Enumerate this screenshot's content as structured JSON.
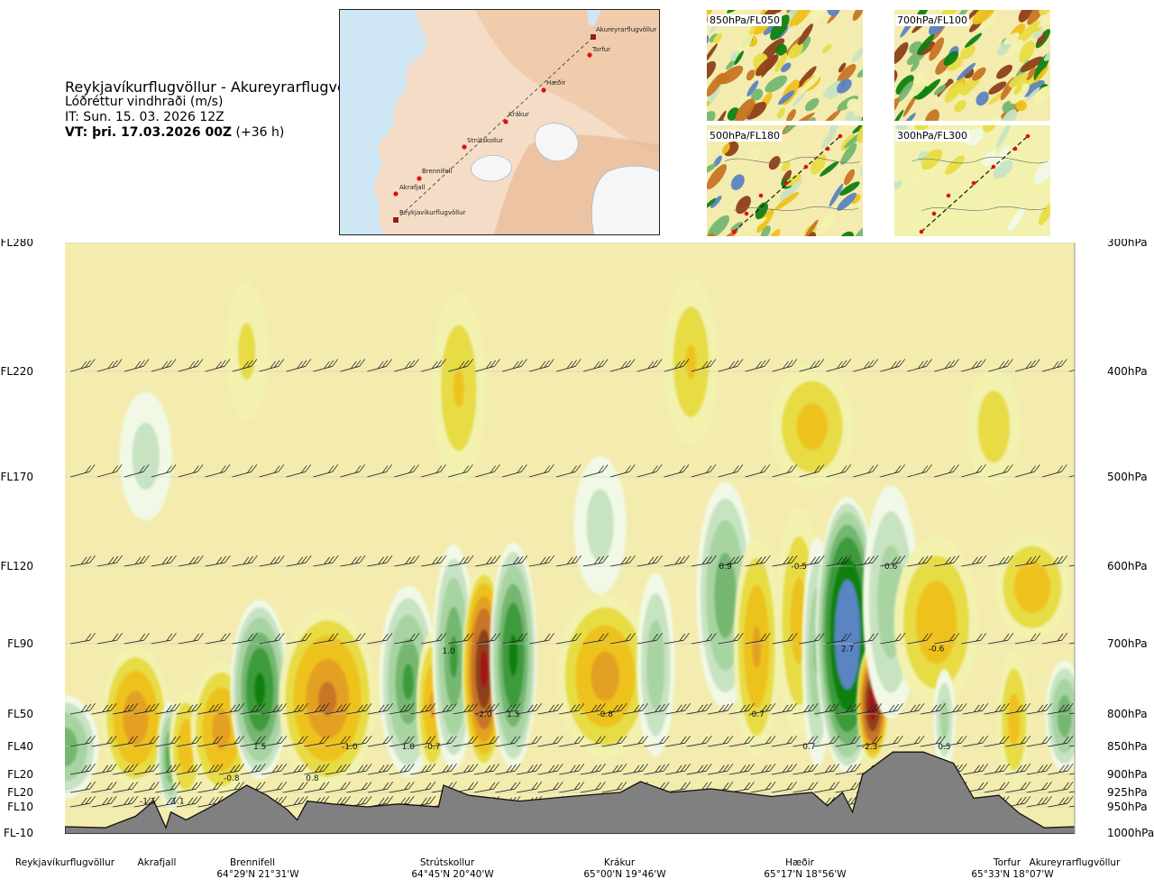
{
  "title": {
    "route": "Reykjavíkurflugvöllur - Akureyrarflugvöllur",
    "parameter": "Lóðréttur vindhraði (m/s)",
    "it": "IT: Sun. 15. 03. 2026 12Z",
    "vt_bold": "VT: þri. 17.03.2026 00Z",
    "vt_offset": "(+36 h)"
  },
  "route_map": {
    "points": [
      {
        "name": "Akureyrarflugvöllur",
        "kind": "airport"
      },
      {
        "name": "Torfur",
        "kind": "waypoint"
      },
      {
        "name": "Hæðir",
        "kind": "waypoint"
      },
      {
        "name": "Krákur",
        "kind": "waypoint"
      },
      {
        "name": "Strútskollur",
        "kind": "waypoint"
      },
      {
        "name": "Brennifell",
        "kind": "waypoint"
      },
      {
        "name": "Akrafjall",
        "kind": "waypoint"
      },
      {
        "name": "Reykjavíkurflugvöllur",
        "kind": "airport"
      }
    ]
  },
  "mini_maps": [
    {
      "label": "850hPa/FL050",
      "style": "dense"
    },
    {
      "label": "700hPa/FL100",
      "style": "dense"
    },
    {
      "label": "500hPa/FL180",
      "style": "medium"
    },
    {
      "label": "300hPa/FL300",
      "style": "sparse"
    }
  ],
  "colors": {
    "terrain": "#808080",
    "background": "#f3ecae",
    "neg_1": "#f2f2ae",
    "neg_2": "#e8dc44",
    "neg_3": "#eec21a",
    "neg_4": "#e3a022",
    "neg_5": "#c77525",
    "neg_6": "#8e3f1a",
    "neg_7": "#a31515",
    "neg_8": "#d80c0c",
    "pos_1": "#f1f9e6",
    "pos_2": "#c8e3c2",
    "pos_3": "#a8d4a2",
    "pos_4": "#75b771",
    "pos_5": "#3e9b3a",
    "pos_6": "#108010",
    "pos_7": "#5a84c2",
    "pos_8": "#6a5cda"
  },
  "chart_data": {
    "type": "heatmap",
    "title": "Lóðréttur vindhraði (m/s)",
    "x_axis": "distance along route",
    "x_range": [
      0,
      1
    ],
    "y_axis_left": {
      "labels": [
        "FL280",
        "FL220",
        "FL170",
        "FL120",
        "FL90",
        "FL50",
        "FL40",
        "FL20",
        "FL20",
        "FL10",
        "FL-10"
      ],
      "pressure_hpa": [
        300,
        400,
        500,
        600,
        700,
        800,
        850,
        900,
        925,
        950,
        1000
      ]
    },
    "y_axis_right": {
      "labels": [
        "300hPa",
        "400hPa",
        "500hPa",
        "600hPa",
        "700hPa",
        "800hPa",
        "850hPa",
        "900hPa",
        "925hPa",
        "950hPa",
        "1000hPa"
      ],
      "pressure_hpa": [
        300,
        400,
        500,
        600,
        700,
        800,
        850,
        900,
        925,
        950,
        1000
      ]
    },
    "waypoints": [
      {
        "name": "Reykjavíkurflugvöllur",
        "x": 0.0,
        "coords": ""
      },
      {
        "name": "Akrafjall",
        "x": 0.09,
        "coords": ""
      },
      {
        "name": "Brennifell",
        "x": 0.186,
        "coords": "64°29'N 21°31'W"
      },
      {
        "name": "Strútskollur",
        "x": 0.379,
        "coords": "64°45'N 20°40'W"
      },
      {
        "name": "Krákur",
        "x": 0.562,
        "coords": "65°00'N 19°46'W"
      },
      {
        "name": "Hæðir",
        "x": 0.75,
        "coords": "65°17'N 18°56'W"
      },
      {
        "name": "Torfur",
        "x": 0.941,
        "coords": "65°33'N 18°07'W"
      },
      {
        "name": "Akureyrarflugvöllur",
        "x": 1.0,
        "coords": ""
      }
    ],
    "value_labels": [
      {
        "text": "1.5",
        "x": 0.193,
        "p": 850
      },
      {
        "text": "-1.0",
        "x": 0.282,
        "p": 850
      },
      {
        "text": "1.0",
        "x": 0.34,
        "p": 850
      },
      {
        "text": "-0.7",
        "x": 0.364,
        "p": 850
      },
      {
        "text": "0.8",
        "x": 0.245,
        "p": 905
      },
      {
        "text": "-0.8",
        "x": 0.165,
        "p": 905
      },
      {
        "text": "1.1",
        "x": 0.112,
        "p": 940
      },
      {
        "text": "-1.1",
        "x": 0.082,
        "p": 940
      },
      {
        "text": "1.0",
        "x": 0.38,
        "p": 710
      },
      {
        "text": "-2.0",
        "x": 0.415,
        "p": 800
      },
      {
        "text": "1.5",
        "x": 0.444,
        "p": 800
      },
      {
        "text": "-0.8",
        "x": 0.535,
        "p": 800
      },
      {
        "text": "0.9",
        "x": 0.654,
        "p": 600
      },
      {
        "text": "-0.5",
        "x": 0.727,
        "p": 600
      },
      {
        "text": "0.6",
        "x": 0.818,
        "p": 600
      },
      {
        "text": "-0.7",
        "x": 0.685,
        "p": 800
      },
      {
        "text": "2.7",
        "x": 0.775,
        "p": 707
      },
      {
        "text": "-0.6",
        "x": 0.863,
        "p": 707
      },
      {
        "text": "0.7",
        "x": 0.737,
        "p": 850
      },
      {
        "text": "-2.3",
        "x": 0.797,
        "p": 850
      },
      {
        "text": "0.5",
        "x": 0.871,
        "p": 850
      }
    ],
    "barb_levels_hpa": [
      300,
      400,
      500,
      600,
      700,
      800,
      850,
      900,
      925,
      950
    ],
    "cells": [
      {
        "x": 0.0,
        "p0": 770,
        "p1": 940,
        "w": 0.035,
        "v": 0.9
      },
      {
        "x": 0.07,
        "p0": 700,
        "p1": 925,
        "w": 0.035,
        "v": -0.9
      },
      {
        "x": 0.105,
        "p0": 780,
        "p1": 960,
        "w": 0.014,
        "v": 1.1
      },
      {
        "x": 0.12,
        "p0": 760,
        "p1": 950,
        "w": 0.018,
        "v": -0.6
      },
      {
        "x": 0.155,
        "p0": 720,
        "p1": 940,
        "w": 0.032,
        "v": -0.8
      },
      {
        "x": 0.193,
        "p0": 640,
        "p1": 910,
        "w": 0.03,
        "v": 1.5
      },
      {
        "x": 0.26,
        "p0": 650,
        "p1": 925,
        "w": 0.05,
        "v": -1.0
      },
      {
        "x": 0.34,
        "p0": 620,
        "p1": 910,
        "w": 0.03,
        "v": 1.0
      },
      {
        "x": 0.364,
        "p0": 680,
        "p1": 910,
        "w": 0.017,
        "v": -0.7
      },
      {
        "x": 0.385,
        "p0": 570,
        "p1": 900,
        "w": 0.022,
        "v": 1.0
      },
      {
        "x": 0.415,
        "p0": 600,
        "p1": 895,
        "w": 0.022,
        "v": -2.0
      },
      {
        "x": 0.444,
        "p0": 570,
        "p1": 895,
        "w": 0.024,
        "v": 1.5
      },
      {
        "x": 0.535,
        "p0": 630,
        "p1": 880,
        "w": 0.05,
        "v": -0.8
      },
      {
        "x": 0.585,
        "p0": 600,
        "p1": 880,
        "w": 0.02,
        "v": 0.6
      },
      {
        "x": 0.654,
        "p0": 500,
        "p1": 800,
        "w": 0.03,
        "v": 0.9
      },
      {
        "x": 0.685,
        "p0": 560,
        "p1": 880,
        "w": 0.024,
        "v": -0.7
      },
      {
        "x": 0.727,
        "p0": 520,
        "p1": 850,
        "w": 0.025,
        "v": -0.5
      },
      {
        "x": 0.745,
        "p0": 560,
        "p1": 900,
        "w": 0.016,
        "v": 0.7
      },
      {
        "x": 0.775,
        "p0": 520,
        "p1": 900,
        "w": 0.032,
        "v": 2.7
      },
      {
        "x": 0.8,
        "p0": 700,
        "p1": 880,
        "w": 0.016,
        "v": -2.3
      },
      {
        "x": 0.818,
        "p0": 500,
        "p1": 820,
        "w": 0.03,
        "v": 0.6
      },
      {
        "x": 0.863,
        "p0": 560,
        "p1": 800,
        "w": 0.045,
        "v": -0.6
      },
      {
        "x": 0.871,
        "p0": 730,
        "p1": 900,
        "w": 0.012,
        "v": 0.5
      },
      {
        "x": 0.94,
        "p0": 700,
        "p1": 930,
        "w": 0.018,
        "v": -0.5
      },
      {
        "x": 0.958,
        "p0": 560,
        "p1": 700,
        "w": 0.04,
        "v": -0.6
      },
      {
        "x": 0.99,
        "p0": 720,
        "p1": 900,
        "w": 0.02,
        "v": 0.9
      },
      {
        "x": 0.39,
        "p0": 330,
        "p1": 520,
        "w": 0.03,
        "v": -0.4
      },
      {
        "x": 0.62,
        "p0": 320,
        "p1": 480,
        "w": 0.03,
        "v": -0.4
      },
      {
        "x": 0.74,
        "p0": 390,
        "p1": 520,
        "w": 0.045,
        "v": -0.5
      },
      {
        "x": 0.92,
        "p0": 390,
        "p1": 520,
        "w": 0.03,
        "v": -0.35
      },
      {
        "x": 0.18,
        "p0": 320,
        "p1": 460,
        "w": 0.025,
        "v": -0.25
      },
      {
        "x": 0.08,
        "p0": 410,
        "p1": 560,
        "w": 0.03,
        "v": 0.3
      },
      {
        "x": 0.53,
        "p0": 470,
        "p1": 650,
        "w": 0.03,
        "v": 0.3
      }
    ],
    "terrain_profile": [
      {
        "x": 0.0,
        "p": 988
      },
      {
        "x": 0.04,
        "p": 990
      },
      {
        "x": 0.07,
        "p": 968
      },
      {
        "x": 0.088,
        "p": 940
      },
      {
        "x": 0.1,
        "p": 990
      },
      {
        "x": 0.105,
        "p": 960
      },
      {
        "x": 0.12,
        "p": 975
      },
      {
        "x": 0.15,
        "p": 945
      },
      {
        "x": 0.18,
        "p": 915
      },
      {
        "x": 0.2,
        "p": 930
      },
      {
        "x": 0.22,
        "p": 955
      },
      {
        "x": 0.23,
        "p": 975
      },
      {
        "x": 0.24,
        "p": 940
      },
      {
        "x": 0.265,
        "p": 945
      },
      {
        "x": 0.3,
        "p": 950
      },
      {
        "x": 0.33,
        "p": 945
      },
      {
        "x": 0.37,
        "p": 950
      },
      {
        "x": 0.375,
        "p": 915
      },
      {
        "x": 0.4,
        "p": 930
      },
      {
        "x": 0.45,
        "p": 940
      },
      {
        "x": 0.5,
        "p": 932
      },
      {
        "x": 0.55,
        "p": 925
      },
      {
        "x": 0.57,
        "p": 910
      },
      {
        "x": 0.6,
        "p": 925
      },
      {
        "x": 0.64,
        "p": 920
      },
      {
        "x": 0.7,
        "p": 932
      },
      {
        "x": 0.74,
        "p": 925
      },
      {
        "x": 0.755,
        "p": 948
      },
      {
        "x": 0.77,
        "p": 925
      },
      {
        "x": 0.78,
        "p": 960
      },
      {
        "x": 0.79,
        "p": 900
      },
      {
        "x": 0.82,
        "p": 860
      },
      {
        "x": 0.85,
        "p": 860
      },
      {
        "x": 0.88,
        "p": 880
      },
      {
        "x": 0.9,
        "p": 935
      },
      {
        "x": 0.925,
        "p": 930
      },
      {
        "x": 0.945,
        "p": 962
      },
      {
        "x": 0.97,
        "p": 990
      },
      {
        "x": 1.0,
        "p": 988
      }
    ],
    "color_scale_ms": [
      -3,
      -2,
      -1.5,
      -1,
      -0.7,
      -0.4,
      -0.2,
      -0.05,
      0.05,
      0.2,
      0.4,
      0.7,
      1,
      1.5,
      2,
      3
    ]
  }
}
